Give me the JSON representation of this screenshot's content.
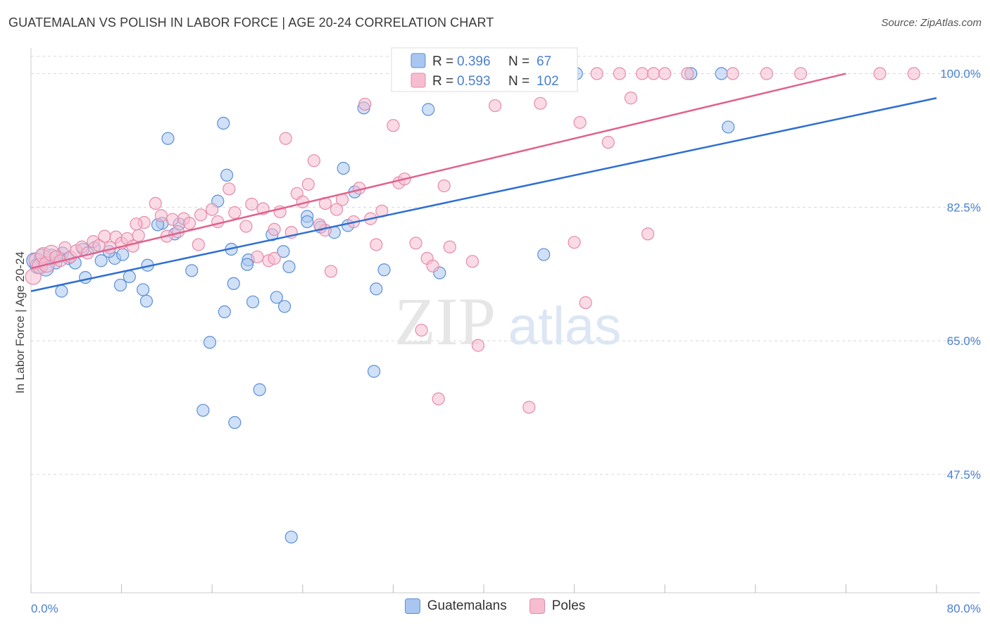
{
  "title": "GUATEMALAN VS POLISH IN LABOR FORCE | AGE 20-24 CORRELATION CHART",
  "source": "Source: ZipAtlas.com",
  "watermark": {
    "zip": "ZIP",
    "atlas": "atlas"
  },
  "colors": {
    "blue_fill": "#a9c6f0",
    "blue_stroke": "#5b8fd6",
    "blue_line": "#2f6fd1",
    "pink_fill": "#f6bdd0",
    "pink_stroke": "#e68aa9",
    "pink_line": "#e0628d",
    "axis_label": "#4a7fd0",
    "grid": "#d8d8d8"
  },
  "chart_data": {
    "type": "scatter",
    "xlabel": "",
    "ylabel": "In Labor Force | Age 20-24",
    "xlim": [
      0,
      80
    ],
    "ylim": [
      32,
      103
    ],
    "x_tick_labels": [
      {
        "value": 0,
        "label": "0.0%"
      },
      {
        "value": 80,
        "label": "80.0%"
      }
    ],
    "y_ticks": [
      {
        "value": 47.5,
        "label": "47.5%"
      },
      {
        "value": 65.0,
        "label": "65.0%"
      },
      {
        "value": 82.5,
        "label": "82.5%"
      },
      {
        "value": 100.0,
        "label": "100.0%"
      }
    ],
    "grid": "horizontal dashed",
    "legend_position": "top-center",
    "stats": [
      {
        "r_label": "R =",
        "r_value": "0.396",
        "n_label": "N =",
        "n_value": "67"
      },
      {
        "r_label": "R =",
        "r_value": "0.593",
        "n_label": "N =",
        "n_value": "102"
      }
    ],
    "series": [
      {
        "name": "Guatemalans",
        "color": "#a9c6f0",
        "trend": {
          "x": [
            0,
            80
          ],
          "y": [
            71.5,
            96.8
          ]
        },
        "points": [
          [
            0.3,
            75.5
          ],
          [
            0.6,
            74.8
          ],
          [
            1.0,
            76.0
          ],
          [
            1.3,
            74.5
          ],
          [
            1.8,
            76.0
          ],
          [
            2.2,
            75.2
          ],
          [
            2.8,
            76.5
          ],
          [
            3.3,
            75.8
          ],
          [
            3.9,
            75.2
          ],
          [
            4.6,
            77.0
          ],
          [
            2.7,
            71.5
          ],
          [
            6.2,
            75.5
          ],
          [
            7.4,
            75.8
          ],
          [
            8.1,
            76.3
          ],
          [
            4.8,
            73.3
          ],
          [
            5.6,
            77.2
          ],
          [
            6.9,
            76.7
          ],
          [
            8.7,
            73.4
          ],
          [
            7.9,
            72.3
          ],
          [
            10.3,
            74.9
          ],
          [
            9.9,
            71.7
          ],
          [
            10.2,
            70.2
          ],
          [
            11.6,
            80.4
          ],
          [
            12.7,
            79.0
          ],
          [
            11.2,
            80.2
          ],
          [
            14.2,
            74.2
          ],
          [
            13.1,
            80.3
          ],
          [
            12.1,
            91.5
          ],
          [
            17.7,
            77.0
          ],
          [
            16.5,
            83.3
          ],
          [
            17.3,
            86.7
          ],
          [
            17.0,
            93.5
          ],
          [
            19.2,
            75.6
          ],
          [
            21.3,
            78.9
          ],
          [
            22.3,
            76.7
          ],
          [
            22.8,
            74.7
          ],
          [
            19.1,
            75.0
          ],
          [
            17.9,
            72.5
          ],
          [
            17.1,
            68.8
          ],
          [
            19.6,
            70.1
          ],
          [
            21.7,
            70.7
          ],
          [
            22.4,
            69.5
          ],
          [
            15.8,
            64.8
          ],
          [
            15.2,
            55.9
          ],
          [
            18.0,
            54.3
          ],
          [
            20.2,
            58.6
          ],
          [
            24.4,
            81.3
          ],
          [
            25.6,
            79.9
          ],
          [
            24.4,
            80.6
          ],
          [
            27.6,
            87.6
          ],
          [
            28.6,
            84.5
          ],
          [
            30.5,
            71.8
          ],
          [
            36.1,
            73.9
          ],
          [
            30.3,
            61.0
          ],
          [
            23.0,
            39.3
          ],
          [
            29.4,
            95.5
          ],
          [
            35.1,
            95.3
          ],
          [
            36.3,
            100.0
          ],
          [
            48.2,
            100.0
          ],
          [
            44.8,
            100.0
          ],
          [
            58.3,
            100.0
          ],
          [
            61.0,
            100.0
          ],
          [
            61.6,
            93.0
          ],
          [
            45.3,
            76.3
          ],
          [
            31.2,
            74.3
          ],
          [
            28.0,
            80.1
          ],
          [
            26.8,
            79.2
          ]
        ]
      },
      {
        "name": "Poles",
        "color": "#f6bdd0",
        "trend": {
          "x": [
            0,
            72
          ],
          "y": [
            74.5,
            100.0
          ]
        },
        "points": [
          [
            0.2,
            73.4
          ],
          [
            0.5,
            75.5
          ],
          [
            0.8,
            74.8
          ],
          [
            1.1,
            76.2
          ],
          [
            1.4,
            75.0
          ],
          [
            1.8,
            76.5
          ],
          [
            2.2,
            76.0
          ],
          [
            2.6,
            75.5
          ],
          [
            3.0,
            77.2
          ],
          [
            3.5,
            76.0
          ],
          [
            4.0,
            76.8
          ],
          [
            4.5,
            77.3
          ],
          [
            5.0,
            76.5
          ],
          [
            5.5,
            78.0
          ],
          [
            6.0,
            77.5
          ],
          [
            6.5,
            78.7
          ],
          [
            7.0,
            77.2
          ],
          [
            7.5,
            78.6
          ],
          [
            8.0,
            77.8
          ],
          [
            8.5,
            78.4
          ],
          [
            9.0,
            77.4
          ],
          [
            9.5,
            78.8
          ],
          [
            10.0,
            80.5
          ],
          [
            11.0,
            83.0
          ],
          [
            12.0,
            78.7
          ],
          [
            13.0,
            79.3
          ],
          [
            13.5,
            81.0
          ],
          [
            14.0,
            80.4
          ],
          [
            15.0,
            81.5
          ],
          [
            16.0,
            82.2
          ],
          [
            16.5,
            80.6
          ],
          [
            17.5,
            84.9
          ],
          [
            18.0,
            81.8
          ],
          [
            19.0,
            80.0
          ],
          [
            19.5,
            82.9
          ],
          [
            20.0,
            76.0
          ],
          [
            20.5,
            82.3
          ],
          [
            21.0,
            75.5
          ],
          [
            21.5,
            79.6
          ],
          [
            22.0,
            81.9
          ],
          [
            22.5,
            91.5
          ],
          [
            23.0,
            79.2
          ],
          [
            23.5,
            84.3
          ],
          [
            24.0,
            83.2
          ],
          [
            24.5,
            85.5
          ],
          [
            25.0,
            88.6
          ],
          [
            26.0,
            83.0
          ],
          [
            26.5,
            74.1
          ],
          [
            27.0,
            82.2
          ],
          [
            27.5,
            83.5
          ],
          [
            28.5,
            80.6
          ],
          [
            29.0,
            85.0
          ],
          [
            29.5,
            96.0
          ],
          [
            30.5,
            77.6
          ],
          [
            31.0,
            82.0
          ],
          [
            32.0,
            93.2
          ],
          [
            32.5,
            85.7
          ],
          [
            33.0,
            86.2
          ],
          [
            34.0,
            77.8
          ],
          [
            34.5,
            66.4
          ],
          [
            35.0,
            75.8
          ],
          [
            35.5,
            74.8
          ],
          [
            36.0,
            57.4
          ],
          [
            36.5,
            85.3
          ],
          [
            37.0,
            77.3
          ],
          [
            37.5,
            100.0
          ],
          [
            38.0,
            100.0
          ],
          [
            39.0,
            75.4
          ],
          [
            39.5,
            64.4
          ],
          [
            40.0,
            100.0
          ],
          [
            41.0,
            95.8
          ],
          [
            42.0,
            100.0
          ],
          [
            43.0,
            100.0
          ],
          [
            44.0,
            56.3
          ],
          [
            45.0,
            96.1
          ],
          [
            46.0,
            100.0
          ],
          [
            47.0,
            100.0
          ],
          [
            48.0,
            77.9
          ],
          [
            48.5,
            93.6
          ],
          [
            49.0,
            70.0
          ],
          [
            50.0,
            100.0
          ],
          [
            51.0,
            91.0
          ],
          [
            52.0,
            100.0
          ],
          [
            53.0,
            96.8
          ],
          [
            54.0,
            100.0
          ],
          [
            54.5,
            79.0
          ],
          [
            55.0,
            100.0
          ],
          [
            56.0,
            100.0
          ],
          [
            58.0,
            100.0
          ],
          [
            62.0,
            100.0
          ],
          [
            65.0,
            100.0
          ],
          [
            68.0,
            100.0
          ],
          [
            75.0,
            100.0
          ],
          [
            78.0,
            100.0
          ],
          [
            30.0,
            81.0
          ],
          [
            26.0,
            79.5
          ],
          [
            25.5,
            80.2
          ],
          [
            21.5,
            75.8
          ],
          [
            11.5,
            81.4
          ],
          [
            12.5,
            80.9
          ],
          [
            14.8,
            77.6
          ],
          [
            9.3,
            80.3
          ]
        ]
      }
    ]
  }
}
